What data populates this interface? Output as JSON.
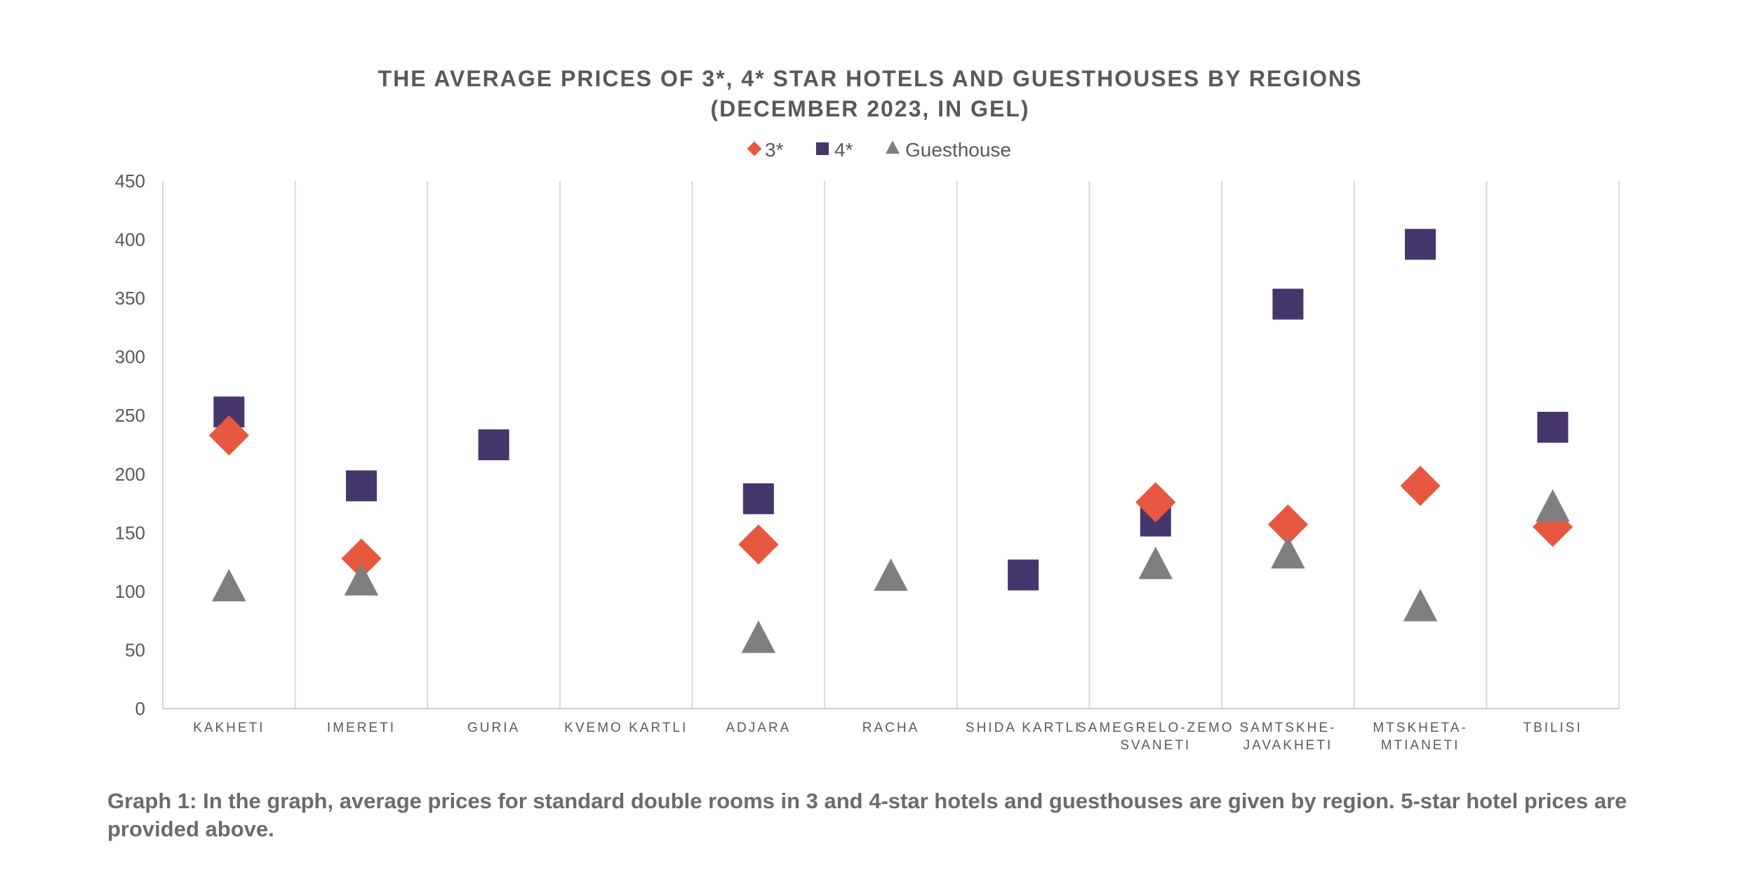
{
  "chart_data": {
    "type": "scatter",
    "title": "THE AVERAGE PRICES OF 3*, 4* STAR HOTELS AND GUESTHOUSES BY REGIONS",
    "subtitle": "(DECEMBER 2023, IN GEL)",
    "xlabel": "",
    "ylabel": "",
    "ylim": [
      0,
      450
    ],
    "yticks": [
      0,
      50,
      100,
      150,
      200,
      250,
      300,
      350,
      400,
      450
    ],
    "grid": "vertical category separators",
    "legend_position": "top-center",
    "categories": [
      [
        "KAKHETI"
      ],
      [
        "IMERETI"
      ],
      [
        "GURIA"
      ],
      [
        "KVEMO KARTLI"
      ],
      [
        "ADJARA"
      ],
      [
        "RACHA"
      ],
      [
        "SHIDA KARTLI"
      ],
      [
        "SAMEGRELO-ZEMO",
        "SVANETI"
      ],
      [
        "SAMTSKHE-",
        "JAVAKHETI"
      ],
      [
        "MTSKHETA-",
        "MTIANETI"
      ],
      [
        "TBILISI"
      ]
    ],
    "series": [
      {
        "name": "3*",
        "marker": "diamond",
        "color": "#E8573F",
        "values": [
          233,
          128,
          null,
          null,
          140,
          null,
          null,
          176,
          157,
          190,
          155
        ]
      },
      {
        "name": "4*",
        "marker": "square",
        "color": "#45366B",
        "values": [
          253,
          190,
          225,
          null,
          179,
          null,
          114,
          160,
          345,
          396,
          240
        ]
      },
      {
        "name": "Guesthouse",
        "marker": "triangle",
        "color": "#7F7F7F",
        "values": [
          102,
          107,
          null,
          null,
          58,
          111,
          null,
          121,
          130,
          85,
          170
        ]
      }
    ]
  },
  "caption": "Graph 1: In the graph, average prices for standard double rooms in 3 and 4-star hotels and guesthouses are given by region. 5-star hotel prices are provided above."
}
